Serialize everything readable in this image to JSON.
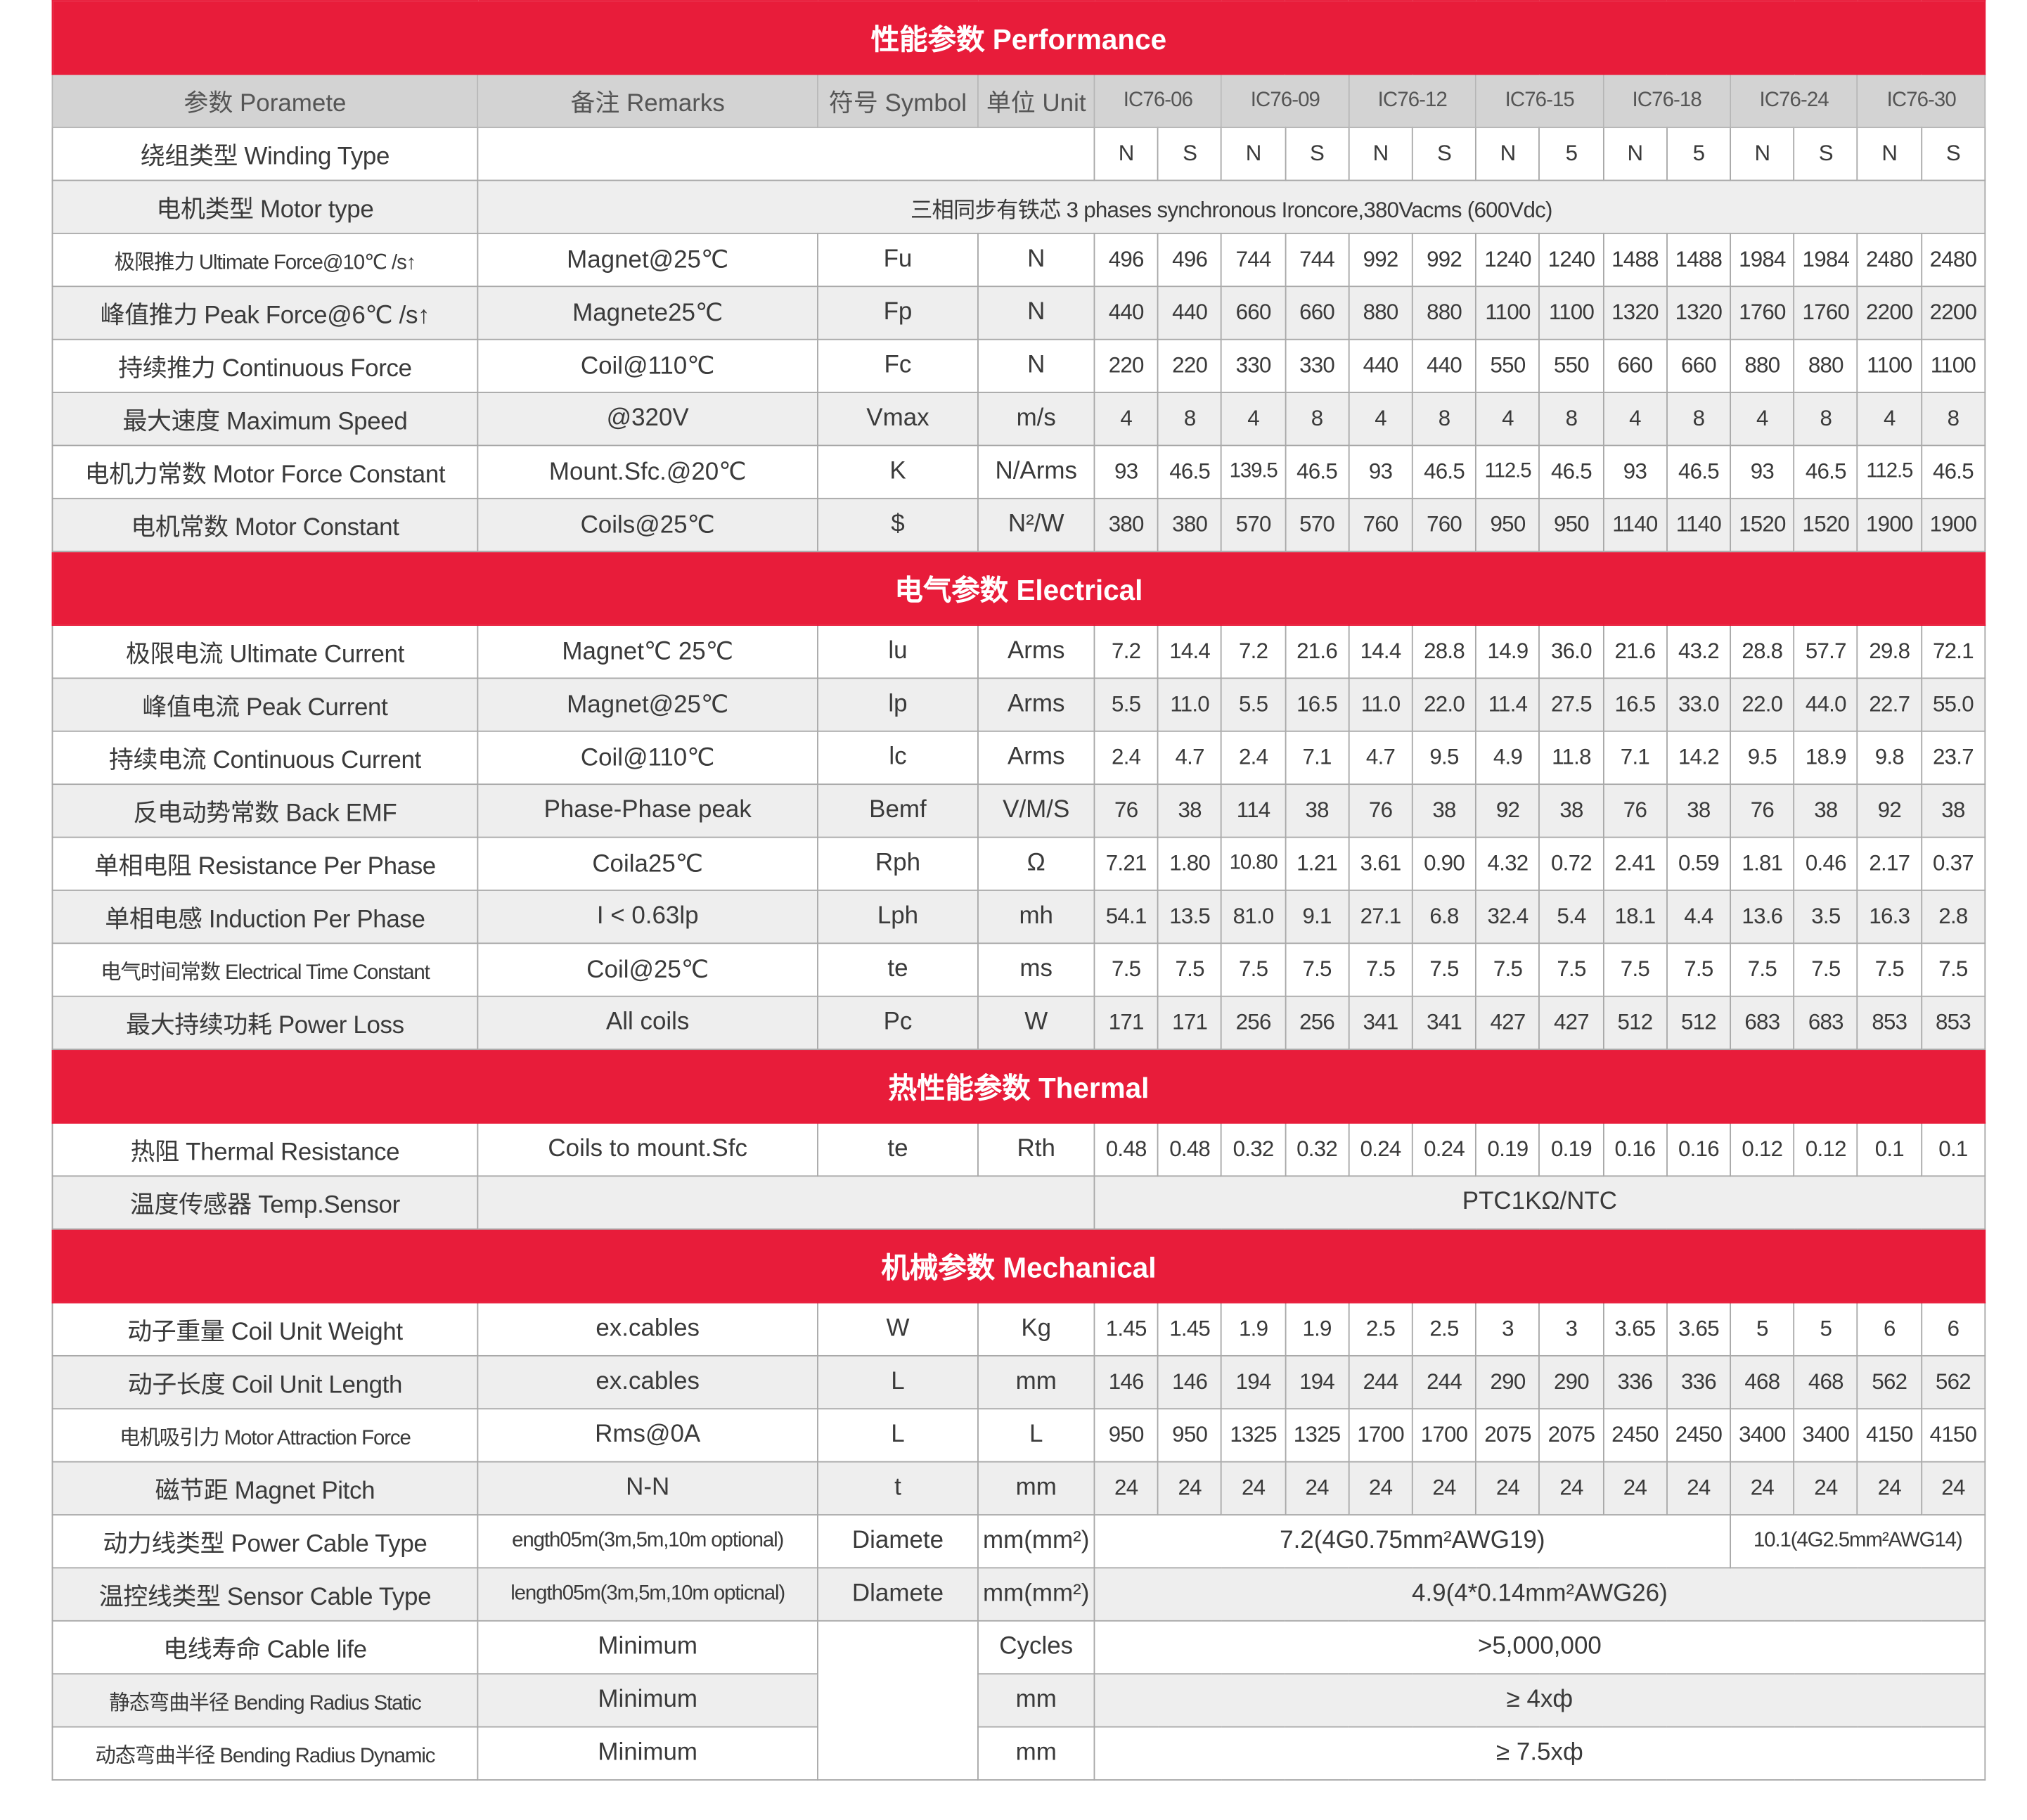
{
  "colors": {
    "banner": "#e81c3a",
    "header_bg": "#d3d3d3",
    "stripe": "#eeeeee",
    "text": "#3a3a3a"
  },
  "header": {
    "param": "参数 Poramete",
    "remarks": "备注 Remarks",
    "symbol": "符号 Symbol",
    "unit": "单位 Unit",
    "models": [
      "IC76-06",
      "IC76-09",
      "IC76-12",
      "IC76-15",
      "IC76-18",
      "IC76-24",
      "IC76-30"
    ]
  },
  "sections": [
    {
      "title": "性能参数 Performance",
      "rows": [
        {
          "param": "绕组类型 Winding Type",
          "blank": "",
          "values": [
            "N",
            "S",
            "N",
            "S",
            "N",
            "S",
            "N",
            "5",
            "N",
            "5",
            "N",
            "S",
            "N",
            "S"
          ]
        },
        {
          "param": "电机类型 Motor type",
          "description": "三相同步有铁芯 3 phases synchronous Ironcore,380Vacms (600Vdc)"
        },
        {
          "param": "极限推力 Ultimate Force@10℃ /s↑",
          "remarks": "Magnet@25℃",
          "symbol": "Fu",
          "unit": "N",
          "values": [
            "496",
            "496",
            "744",
            "744",
            "992",
            "992",
            "1240",
            "1240",
            "1488",
            "1488",
            "1984",
            "1984",
            "2480",
            "2480"
          ]
        },
        {
          "param": "峰值推力 Peak Force@6℃ /s↑",
          "remarks": "Magnete25℃",
          "symbol": "Fp",
          "unit": "N",
          "values": [
            "440",
            "440",
            "660",
            "660",
            "880",
            "880",
            "1100",
            "1100",
            "1320",
            "1320",
            "1760",
            "1760",
            "2200",
            "2200"
          ]
        },
        {
          "param": "持续推力 Continuous Force",
          "remarks": "Coil@110℃",
          "symbol": "Fc",
          "unit": "N",
          "values": [
            "220",
            "220",
            "330",
            "330",
            "440",
            "440",
            "550",
            "550",
            "660",
            "660",
            "880",
            "880",
            "1100",
            "1100"
          ]
        },
        {
          "param": "最大速度 Maximum Speed",
          "remarks": "@320V",
          "symbol": "Vmax",
          "unit": "m/s",
          "values": [
            "4",
            "8",
            "4",
            "8",
            "4",
            "8",
            "4",
            "8",
            "4",
            "8",
            "4",
            "8",
            "4",
            "8"
          ]
        },
        {
          "param": "电机力常数 Motor Force Constant",
          "remarks": "Mount.Sfc.@20℃",
          "symbol": "K",
          "unit": "N/Arms",
          "values": [
            "93",
            "46.5",
            "139.5",
            "46.5",
            "93",
            "46.5",
            "112.5",
            "46.5",
            "93",
            "46.5",
            "93",
            "46.5",
            "112.5",
            "46.5"
          ]
        },
        {
          "param": "电机常数 Motor Constant",
          "remarks": "Coils@25℃",
          "symbol": "$",
          "unit": "N²/W",
          "values": [
            "380",
            "380",
            "570",
            "570",
            "760",
            "760",
            "950",
            "950",
            "1140",
            "1140",
            "1520",
            "1520",
            "1900",
            "1900"
          ]
        }
      ]
    },
    {
      "title": "电气参数 Electrical",
      "rows": [
        {
          "param": "极限电流 Ultimate Current",
          "remarks": "Magnet℃ 25℃",
          "symbol": "lu",
          "unit": "Arms",
          "values": [
            "7.2",
            "14.4",
            "7.2",
            "21.6",
            "14.4",
            "28.8",
            "14.9",
            "36.0",
            "21.6",
            "43.2",
            "28.8",
            "57.7",
            "29.8",
            "72.1"
          ]
        },
        {
          "param": "峰值电流 Peak Current",
          "remarks": "Magnet@25℃",
          "symbol": "lp",
          "unit": "Arms",
          "values": [
            "5.5",
            "11.0",
            "5.5",
            "16.5",
            "11.0",
            "22.0",
            "11.4",
            "27.5",
            "16.5",
            "33.0",
            "22.0",
            "44.0",
            "22.7",
            "55.0"
          ]
        },
        {
          "param": "持续电流 Continuous Current",
          "remarks": "Coil@110℃",
          "symbol": "lc",
          "unit": "Arms",
          "values": [
            "2.4",
            "4.7",
            "2.4",
            "7.1",
            "4.7",
            "9.5",
            "4.9",
            "11.8",
            "7.1",
            "14.2",
            "9.5",
            "18.9",
            "9.8",
            "23.7"
          ]
        },
        {
          "param": "反电动势常数 Back EMF",
          "remarks": "Phase-Phase peak",
          "symbol": "Bemf",
          "unit": "V/M/S",
          "values": [
            "76",
            "38",
            "114",
            "38",
            "76",
            "38",
            "92",
            "38",
            "76",
            "38",
            "76",
            "38",
            "92",
            "38"
          ]
        },
        {
          "param": "单相电阻 Resistance Per Phase",
          "remarks": "Coila25℃",
          "symbol": "Rph",
          "unit": "Ω",
          "values": [
            "7.21",
            "1.80",
            "10.80",
            "1.21",
            "3.61",
            "0.90",
            "4.32",
            "0.72",
            "2.41",
            "0.59",
            "1.81",
            "0.46",
            "2.17",
            "0.37"
          ]
        },
        {
          "param": "单相电感 Induction Per Phase",
          "remarks": "I < 0.63lp",
          "symbol": "Lph",
          "unit": "mh",
          "values": [
            "54.1",
            "13.5",
            "81.0",
            "9.1",
            "27.1",
            "6.8",
            "32.4",
            "5.4",
            "18.1",
            "4.4",
            "13.6",
            "3.5",
            "16.3",
            "2.8"
          ]
        },
        {
          "param": "电气时间常数 Electrical Time Constant",
          "remarks": "Coil@25℃",
          "symbol": "te",
          "unit": "ms",
          "values": [
            "7.5",
            "7.5",
            "7.5",
            "7.5",
            "7.5",
            "7.5",
            "7.5",
            "7.5",
            "7.5",
            "7.5",
            "7.5",
            "7.5",
            "7.5",
            "7.5"
          ]
        },
        {
          "param": "最大持续功耗 Power Loss",
          "remarks": "All coils",
          "symbol": "Pc",
          "unit": "W",
          "values": [
            "171",
            "171",
            "256",
            "256",
            "341",
            "341",
            "427",
            "427",
            "512",
            "512",
            "683",
            "683",
            "853",
            "853"
          ]
        }
      ]
    },
    {
      "title": "热性能参数 Thermal",
      "rows": [
        {
          "param": "热阻 Thermal Resistance",
          "remarks": "Coils to mount.Sfc",
          "symbol": "te",
          "unit": "Rth",
          "values": [
            "0.48",
            "0.48",
            "0.32",
            "0.32",
            "0.24",
            "0.24",
            "0.19",
            "0.19",
            "0.16",
            "0.16",
            "0.12",
            "0.12",
            "0.1",
            "0.1"
          ]
        },
        {
          "param": "温度传感器 Temp.Sensor",
          "blank": "",
          "value": "PTC1KΩ/NTC"
        }
      ]
    },
    {
      "title": "机械参数  Mechanical",
      "rows": [
        {
          "param": "动子重量 Coil Unit Weight",
          "remarks": "ex.cables",
          "symbol": "W",
          "unit": "Kg",
          "values": [
            "1.45",
            "1.45",
            "1.9",
            "1.9",
            "2.5",
            "2.5",
            "3",
            "3",
            "3.65",
            "3.65",
            "5",
            "5",
            "6",
            "6"
          ]
        },
        {
          "param": "动子长度 Coil Unit Length",
          "remarks": "ex.cables",
          "symbol": "L",
          "unit": "mm",
          "values": [
            "146",
            "146",
            "194",
            "194",
            "244",
            "244",
            "290",
            "290",
            "336",
            "336",
            "468",
            "468",
            "562",
            "562"
          ]
        },
        {
          "param": "电机吸引力 Motor Attraction Force",
          "remarks": "Rms@0A",
          "symbol": "L",
          "unit": "L",
          "values": [
            "950",
            "950",
            "1325",
            "1325",
            "1700",
            "1700",
            "2075",
            "2075",
            "2450",
            "2450",
            "3400",
            "3400",
            "4150",
            "4150"
          ]
        },
        {
          "param": "磁节距 Magnet Pitch",
          "remarks": "N-N",
          "symbol": "t",
          "unit": "mm",
          "values": [
            "24",
            "24",
            "24",
            "24",
            "24",
            "24",
            "24",
            "24",
            "24",
            "24",
            "24",
            "24",
            "24",
            "24"
          ]
        },
        {
          "param": "动力线类型 Power Cable Type",
          "remarks": "ength05m(3m,5m,10m optional)",
          "symbol": "Diamete",
          "unit": "mm(mm²)",
          "split": [
            "7.2(4G0.75mm²AWG19)",
            "10.1(4G2.5mm²AWG14)"
          ]
        },
        {
          "param": "温控线类型 Sensor Cable Type",
          "remarks": "length05m(3m,5m,10m opticnal)",
          "symbol": "Dlamete",
          "unit": "mm(mm²)",
          "value": "4.9(4*0.14mm²AWG26)"
        },
        {
          "param": "电线寿命 Cable life",
          "remarks": "Minimum",
          "symbol_merged": "",
          "unit": "Cycles",
          "value": ">5,000,000"
        },
        {
          "param": "静态弯曲半径 Bending Radius Static",
          "remarks": "Minimum",
          "unit": "mm",
          "value": "≥ 4xф"
        },
        {
          "param": "动态弯曲半径 Bending Radius Dynamic",
          "remarks": "Minimum",
          "unit": "mm",
          "value": "≥ 7.5xф"
        }
      ]
    }
  ]
}
